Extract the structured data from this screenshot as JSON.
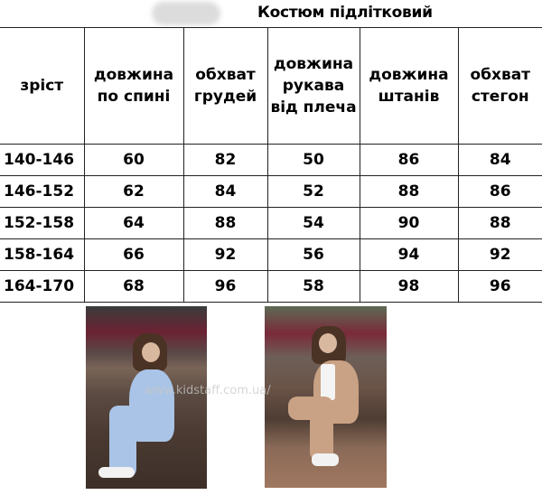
{
  "title": "Костюм підлітковий",
  "table": {
    "headers": [
      [
        "зріст"
      ],
      [
        "довжина",
        "по спині"
      ],
      [
        "обхват",
        "грудей"
      ],
      [
        "довжина",
        "рукава",
        "від плеча"
      ],
      [
        "довжина",
        "штанів"
      ],
      [
        "обхват",
        "стегон"
      ]
    ],
    "rows": [
      [
        "140-146",
        "60",
        "82",
        "50",
        "86",
        "84"
      ],
      [
        "146-152",
        "62",
        "84",
        "52",
        "88",
        "86"
      ],
      [
        "152-158",
        "64",
        "88",
        "54",
        "90",
        "88"
      ],
      [
        "158-164",
        "66",
        "92",
        "56",
        "94",
        "92"
      ],
      [
        "164-170",
        "68",
        "96",
        "58",
        "98",
        "96"
      ]
    ]
  },
  "photos": [
    {
      "name": "light-blue-suit",
      "suit_color": "#a9c4e6"
    },
    {
      "name": "beige-suit",
      "suit_color": "#c9a184"
    }
  ],
  "watermark": "www.kidstaff.com.ua/"
}
